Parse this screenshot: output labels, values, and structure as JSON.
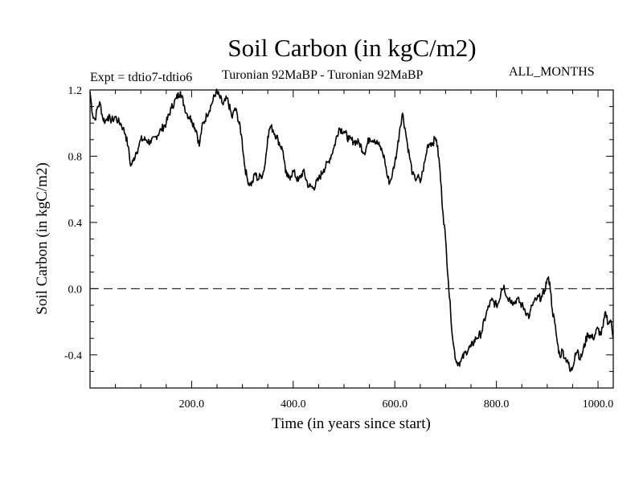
{
  "header": {
    "title": "Soil Carbon (in kgC/m2)",
    "expt": "Expt = tdtio7-tdtio6",
    "subtitle": "Turonian  92MaBP - Turonian  92MaBP",
    "months": "ALL_MONTHS"
  },
  "chart_data": {
    "type": "line",
    "title": "Soil Carbon (in kgC/m2)",
    "xlabel": "Time (in years since start)",
    "ylabel": "Soil Carbon (in kgC/m2)",
    "xlim": [
      0,
      1030
    ],
    "ylim": [
      -0.6,
      1.2
    ],
    "x_ticks": [
      200,
      400,
      600,
      800,
      1000
    ],
    "x_tick_labels": [
      "200.0",
      "400.0",
      "600.0",
      "800.0",
      "1000.0"
    ],
    "y_ticks": [
      -0.4,
      0.0,
      0.4,
      0.8,
      1.2
    ],
    "y_tick_labels": [
      "-0.4",
      "0.0",
      "0.4",
      "0.8",
      "1.2"
    ],
    "reference_line": {
      "y": 0.0,
      "style": "dashed"
    },
    "grid": false,
    "series": [
      {
        "x": [
          0,
          5,
          10,
          15,
          20,
          25,
          30,
          35,
          40,
          45,
          50,
          55,
          60,
          65,
          70,
          75,
          80,
          85,
          90,
          95,
          100,
          110,
          120,
          130,
          140,
          150,
          160,
          170,
          178,
          185,
          190,
          200,
          210,
          215,
          220,
          230,
          240,
          248,
          255,
          262,
          270,
          280,
          285,
          290,
          298,
          305,
          310,
          315,
          320,
          325,
          330,
          335,
          340,
          345,
          350,
          355,
          360,
          370,
          380,
          385,
          390,
          395,
          400,
          410,
          420,
          430,
          440,
          450,
          460,
          470,
          480,
          490,
          500,
          510,
          520,
          530,
          540,
          550,
          560,
          570,
          575,
          580,
          585,
          590,
          595,
          600,
          605,
          610,
          615,
          620,
          625,
          630,
          635,
          640,
          645,
          650,
          655,
          660,
          665,
          670,
          675,
          680,
          682,
          688,
          695,
          700,
          705,
          710,
          715,
          720,
          725,
          730,
          740,
          750,
          760,
          770,
          780,
          790,
          800,
          805,
          810,
          815,
          820,
          825,
          830,
          835,
          840,
          850,
          855,
          860,
          865,
          870,
          880,
          890,
          895,
          900,
          905,
          910,
          915,
          920,
          925,
          930,
          935,
          940,
          945,
          950,
          955,
          960,
          965,
          970,
          980,
          990,
          1000,
          1005,
          1010,
          1015,
          1020,
          1025,
          1030
        ],
        "values": [
          1.19,
          1.05,
          1.02,
          1.1,
          1.12,
          1.03,
          1.01,
          1.04,
          1.02,
          1.02,
          1.04,
          1.01,
          1.0,
          0.97,
          0.93,
          0.86,
          0.74,
          0.77,
          0.82,
          0.85,
          0.9,
          0.9,
          0.88,
          0.92,
          0.96,
          1.0,
          1.09,
          1.15,
          1.19,
          1.11,
          1.06,
          1.02,
          0.95,
          0.86,
          0.97,
          1.05,
          1.12,
          1.19,
          1.16,
          1.11,
          1.15,
          1.03,
          1.09,
          1.05,
          0.93,
          0.73,
          0.66,
          0.63,
          0.64,
          0.7,
          0.66,
          0.68,
          0.69,
          0.76,
          0.92,
          0.98,
          0.96,
          0.9,
          0.83,
          0.7,
          0.67,
          0.68,
          0.71,
          0.65,
          0.71,
          0.62,
          0.61,
          0.66,
          0.72,
          0.77,
          0.85,
          0.97,
          0.95,
          0.9,
          0.89,
          0.88,
          0.82,
          0.91,
          0.9,
          0.86,
          0.83,
          0.78,
          0.68,
          0.64,
          0.69,
          0.76,
          0.85,
          0.97,
          1.06,
          0.97,
          0.87,
          0.78,
          0.69,
          0.66,
          0.68,
          0.64,
          0.71,
          0.78,
          0.87,
          0.88,
          0.88,
          0.91,
          0.9,
          0.75,
          0.45,
          0.3,
          0.06,
          -0.15,
          -0.33,
          -0.43,
          -0.45,
          -0.44,
          -0.38,
          -0.35,
          -0.3,
          -0.27,
          -0.15,
          -0.07,
          -0.1,
          -0.08,
          0.0,
          0.02,
          -0.05,
          -0.06,
          -0.07,
          -0.09,
          -0.06,
          -0.1,
          -0.12,
          -0.15,
          -0.17,
          -0.1,
          -0.06,
          -0.05,
          -0.01,
          0.06,
          0.04,
          -0.13,
          -0.21,
          -0.33,
          -0.41,
          -0.37,
          -0.42,
          -0.43,
          -0.5,
          -0.48,
          -0.39,
          -0.37,
          -0.43,
          -0.38,
          -0.27,
          -0.3,
          -0.24,
          -0.28,
          -0.23,
          -0.14,
          -0.21,
          -0.19,
          -0.3
        ]
      }
    ]
  }
}
